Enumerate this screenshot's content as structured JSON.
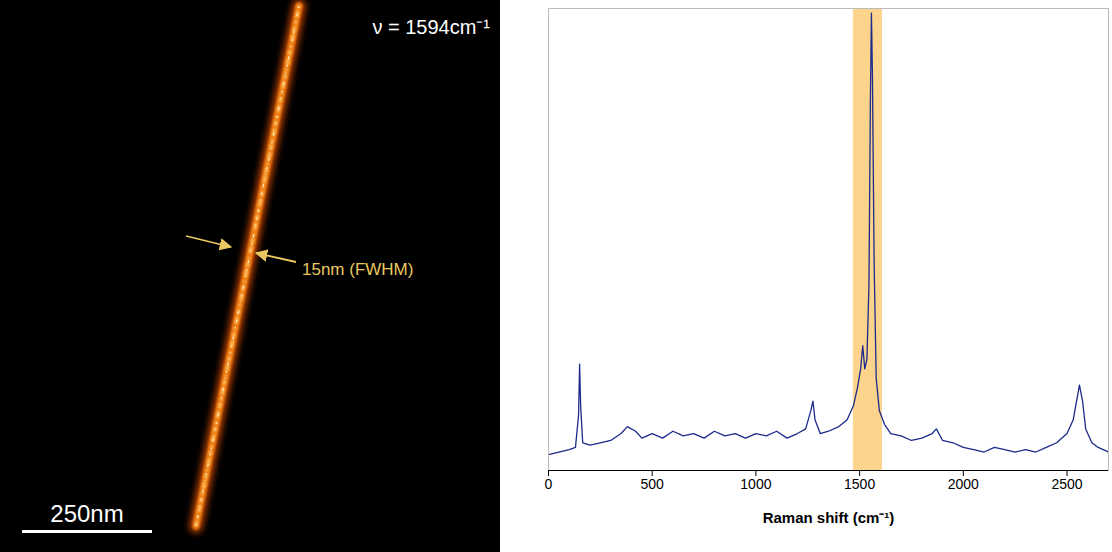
{
  "image_panel": {
    "label": "ν = 1594cm⁻¹",
    "annotation": "15nm (FWHM)",
    "scale_bar": "250nm"
  },
  "chart_data": {
    "type": "line",
    "xlabel": "Raman shift (cm⁻¹)",
    "x": [
      5,
      50,
      100,
      130,
      145,
      150,
      155,
      165,
      200,
      250,
      300,
      350,
      380,
      420,
      450,
      500,
      550,
      600,
      650,
      700,
      750,
      800,
      850,
      900,
      950,
      1000,
      1050,
      1100,
      1150,
      1200,
      1240,
      1265,
      1275,
      1285,
      1310,
      1350,
      1400,
      1440,
      1470,
      1490,
      1505,
      1515,
      1525,
      1535,
      1545,
      1552,
      1557,
      1562,
      1570,
      1580,
      1595,
      1620,
      1650,
      1700,
      1750,
      1800,
      1850,
      1870,
      1900,
      1950,
      2000,
      2050,
      2100,
      2150,
      2200,
      2250,
      2300,
      2350,
      2400,
      2450,
      2500,
      2530,
      2550,
      2560,
      2575,
      2590,
      2620,
      2650,
      2700
    ],
    "values": [
      3.5,
      4,
      4.5,
      5,
      12,
      23,
      14,
      6,
      5.5,
      6,
      6.5,
      8,
      9.5,
      8.5,
      7,
      8,
      7,
      8.5,
      7.5,
      8,
      7,
      8.5,
      7.5,
      8,
      7,
      8,
      7.5,
      8.5,
      7,
      8,
      9,
      13,
      15,
      11,
      8,
      8.5,
      9.5,
      11,
      14,
      18,
      22,
      27,
      22,
      24,
      40,
      80,
      99,
      85,
      45,
      20,
      13,
      10,
      8,
      7.5,
      6.5,
      7,
      8,
      9,
      6.5,
      6,
      5,
      4.5,
      4,
      5,
      4.5,
      4,
      4.5,
      4,
      5,
      6,
      8,
      11,
      16,
      18.5,
      15,
      9,
      6,
      5,
      4
    ],
    "color": "#1c2a8c",
    "highlight": {
      "x1": 1470,
      "x2": 1610,
      "color": "#fcd48c"
    },
    "xlim": [
      0,
      2700
    ],
    "xticks": [
      0,
      500,
      1000,
      1500,
      2000,
      2500
    ],
    "ylim": [
      0,
      100
    ],
    "yticks": [],
    "tick_labels": "x"
  }
}
